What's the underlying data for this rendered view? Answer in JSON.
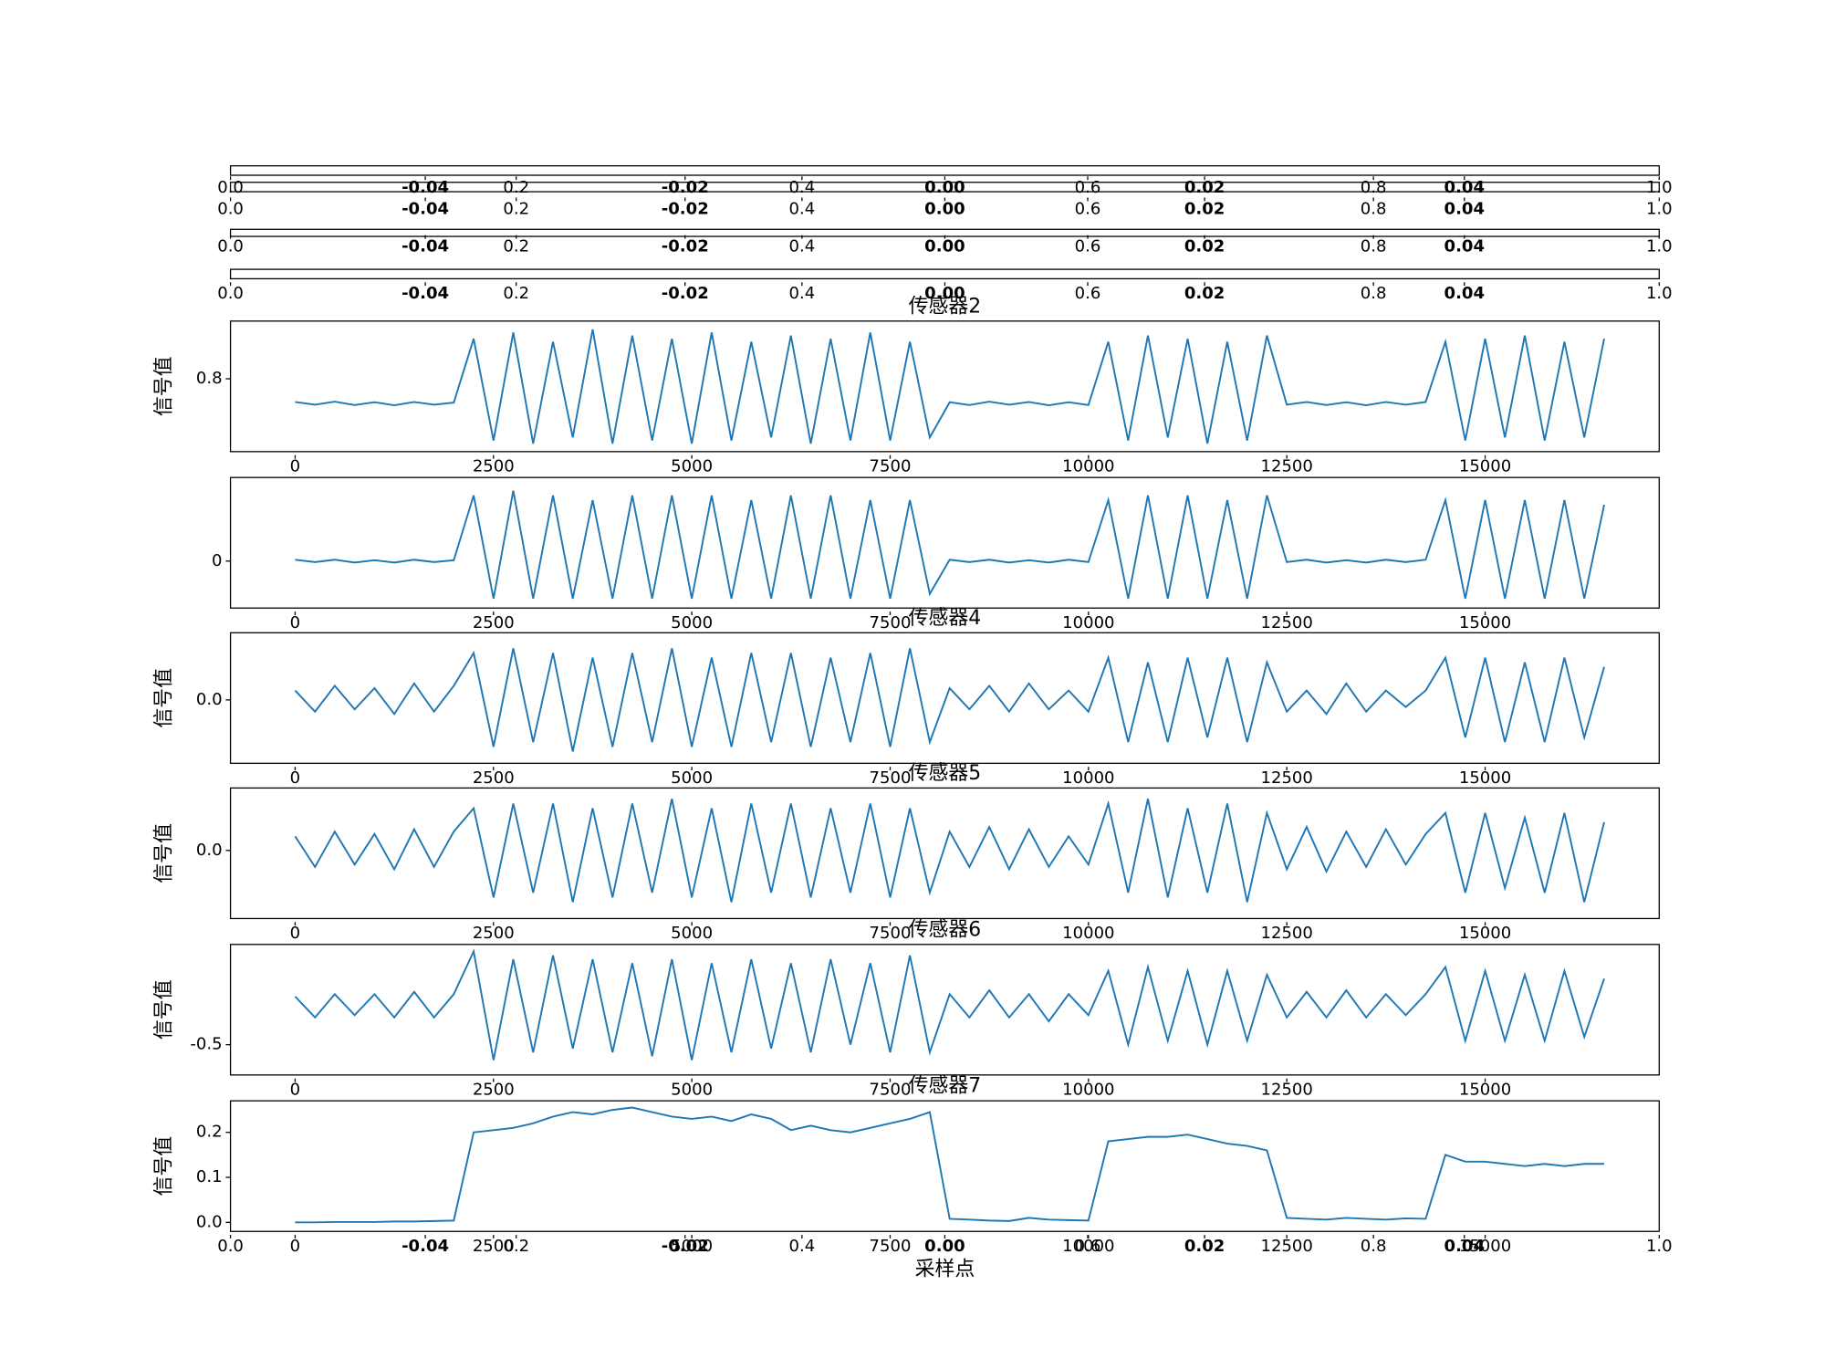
{
  "chart_data": [
    {
      "type": "empty",
      "xlim": [
        0,
        1
      ],
      "xticks": [
        {
          "value": 0,
          "label": "0.0"
        },
        0.2,
        0.4,
        0.6,
        0.8,
        {
          "value": 1,
          "label": "1.0"
        }
      ],
      "twin": {
        "xlim": [
          -0.055,
          0.055
        ],
        "xticks": [
          -0.04,
          -0.02,
          {
            "value": 0,
            "label": "0.00"
          },
          0.02,
          0.04
        ]
      }
    },
    {
      "type": "empty",
      "xlim": [
        0,
        1
      ],
      "xticks": [
        {
          "value": 0,
          "label": "0.0"
        },
        0.2,
        0.4,
        0.6,
        0.8,
        {
          "value": 1,
          "label": "1.0"
        }
      ],
      "twin": {
        "xlim": [
          -0.055,
          0.055
        ],
        "xticks": [
          -0.04,
          -0.02,
          {
            "value": 0,
            "label": "0.00"
          },
          0.02,
          0.04
        ]
      }
    },
    {
      "type": "empty",
      "xlim": [
        0,
        1
      ],
      "xticks": [
        {
          "value": 0,
          "label": "0.0"
        },
        0.2,
        0.4,
        0.6,
        0.8,
        {
          "value": 1,
          "label": "1.0"
        }
      ],
      "twin": {
        "xlim": [
          -0.055,
          0.055
        ],
        "xticks": [
          -0.04,
          -0.02,
          {
            "value": 0,
            "label": "0.00"
          },
          0.02,
          0.04
        ]
      }
    },
    {
      "type": "empty",
      "xlim": [
        0,
        1
      ],
      "xticks": [
        {
          "value": 0,
          "label": "0.0"
        },
        0.2,
        0.4,
        0.6,
        0.8,
        {
          "value": 1,
          "label": "1.0"
        }
      ],
      "twin": {
        "xlim": [
          -0.055,
          0.055
        ],
        "xticks": [
          -0.04,
          -0.02,
          {
            "value": 0,
            "label": "0.00"
          },
          0.02,
          0.04
        ]
      }
    },
    {
      "type": "line",
      "title": "传感器2",
      "ylabel": "信号值",
      "color": "#1f77b4",
      "xlim": [
        -815,
        17194
      ],
      "xticks": [
        0,
        2500,
        5000,
        7500,
        10000,
        12500,
        15000
      ],
      "ylim": [
        -1.56,
        2.67
      ],
      "yticks": [
        0.8
      ],
      "x": [
        0,
        250,
        500,
        750,
        1000,
        1250,
        1500,
        1750,
        2000,
        2250,
        2500,
        2750,
        3000,
        3250,
        3500,
        3750,
        4000,
        4250,
        4500,
        4750,
        5000,
        5250,
        5500,
        5750,
        6000,
        6250,
        6500,
        6750,
        7000,
        7250,
        7500,
        7750,
        8000,
        8250,
        8500,
        8750,
        9000,
        9250,
        9500,
        9750,
        10000,
        10250,
        10500,
        10750,
        11000,
        11250,
        11500,
        11750,
        12000,
        12250,
        12500,
        12750,
        13000,
        13250,
        13500,
        13750,
        14000,
        14250,
        14500,
        14750,
        15000,
        15250,
        15500,
        15750,
        16000,
        16250,
        16500
      ],
      "values": [
        0.05,
        -0.04,
        0.06,
        -0.05,
        0.04,
        -0.06,
        0.05,
        -0.04,
        0.03,
        2.1,
        -1.2,
        2.3,
        -1.3,
        2.0,
        -1.1,
        2.4,
        -1.3,
        2.2,
        -1.2,
        2.1,
        -1.3,
        2.3,
        -1.2,
        2.0,
        -1.1,
        2.2,
        -1.3,
        2.1,
        -1.2,
        2.3,
        -1.2,
        2.0,
        -1.1,
        0.04,
        -0.05,
        0.06,
        -0.04,
        0.05,
        -0.06,
        0.04,
        -0.05,
        2.0,
        -1.2,
        2.2,
        -1.1,
        2.1,
        -1.3,
        2.0,
        -1.2,
        2.2,
        -0.04,
        0.05,
        -0.05,
        0.04,
        -0.06,
        0.05,
        -0.04,
        0.05,
        2.0,
        -1.2,
        2.1,
        -1.1,
        2.2,
        -1.2,
        2.0,
        -1.1,
        2.1
      ]
    },
    {
      "type": "line",
      "color": "#1f77b4",
      "xlim": [
        -815,
        17194
      ],
      "xticks": [
        0,
        2500,
        5000,
        7500,
        10000,
        12500,
        15000
      ],
      "ylim": [
        -1.0,
        1.78
      ],
      "yticks": [
        0
      ],
      "x": [
        0,
        250,
        500,
        750,
        1000,
        1250,
        1500,
        1750,
        2000,
        2250,
        2500,
        2750,
        3000,
        3250,
        3500,
        3750,
        4000,
        4250,
        4500,
        4750,
        5000,
        5250,
        5500,
        5750,
        6000,
        6250,
        6500,
        6750,
        7000,
        7250,
        7500,
        7750,
        8000,
        8250,
        8500,
        8750,
        9000,
        9250,
        9500,
        9750,
        10000,
        10250,
        10500,
        10750,
        11000,
        11250,
        11500,
        11750,
        12000,
        12250,
        12500,
        12750,
        13000,
        13250,
        13500,
        13750,
        14000,
        14250,
        14500,
        14750,
        15000,
        15250,
        15500,
        15750,
        16000,
        16250,
        16500
      ],
      "values": [
        0.03,
        -0.02,
        0.03,
        -0.03,
        0.02,
        -0.03,
        0.03,
        -0.02,
        0.02,
        1.4,
        -0.8,
        1.5,
        -0.8,
        1.4,
        -0.8,
        1.3,
        -0.8,
        1.4,
        -0.8,
        1.4,
        -0.8,
        1.4,
        -0.8,
        1.3,
        -0.8,
        1.4,
        -0.8,
        1.4,
        -0.8,
        1.3,
        -0.8,
        1.3,
        -0.7,
        0.03,
        -0.02,
        0.03,
        -0.03,
        0.02,
        -0.03,
        0.03,
        -0.02,
        1.3,
        -0.8,
        1.4,
        -0.8,
        1.4,
        -0.8,
        1.3,
        -0.8,
        1.4,
        -0.02,
        0.03,
        -0.03,
        0.02,
        -0.03,
        0.03,
        -0.02,
        0.03,
        1.3,
        -0.8,
        1.3,
        -0.8,
        1.3,
        -0.8,
        1.3,
        -0.8,
        1.2
      ]
    },
    {
      "type": "line",
      "title": "传感器4",
      "ylabel": "信号值",
      "color": "#1f77b4",
      "xlim": [
        -815,
        17194
      ],
      "xticks": [
        0,
        2500,
        5000,
        7500,
        10000,
        12500,
        15000
      ],
      "ylim": [
        -1.35,
        1.43
      ],
      "yticks": [
        {
          "value": 0,
          "label": "0.0"
        }
      ],
      "x": [
        0,
        250,
        500,
        750,
        1000,
        1250,
        1500,
        1750,
        2000,
        2250,
        2500,
        2750,
        3000,
        3250,
        3500,
        3750,
        4000,
        4250,
        4500,
        4750,
        5000,
        5250,
        5500,
        5750,
        6000,
        6250,
        6500,
        6750,
        7000,
        7250,
        7500,
        7750,
        8000,
        8250,
        8500,
        8750,
        9000,
        9250,
        9500,
        9750,
        10000,
        10250,
        10500,
        10750,
        11000,
        11250,
        11500,
        11750,
        12000,
        12250,
        12500,
        12750,
        13000,
        13250,
        13500,
        13750,
        14000,
        14250,
        14500,
        14750,
        15000,
        15250,
        15500,
        15750,
        16000,
        16250,
        16500
      ],
      "values": [
        0.2,
        -0.25,
        0.3,
        -0.2,
        0.25,
        -0.3,
        0.35,
        -0.25,
        0.3,
        1.0,
        -1.0,
        1.1,
        -0.9,
        1.0,
        -1.1,
        0.9,
        -1.0,
        1.0,
        -0.9,
        1.1,
        -1.0,
        0.9,
        -1.0,
        1.0,
        -0.9,
        1.0,
        -1.0,
        0.9,
        -0.9,
        1.0,
        -1.0,
        1.1,
        -0.9,
        0.25,
        -0.2,
        0.3,
        -0.25,
        0.35,
        -0.2,
        0.2,
        -0.25,
        0.9,
        -0.9,
        0.8,
        -0.9,
        0.9,
        -0.8,
        0.9,
        -0.9,
        0.8,
        -0.25,
        0.2,
        -0.3,
        0.35,
        -0.25,
        0.2,
        -0.15,
        0.2,
        0.9,
        -0.8,
        0.9,
        -0.9,
        0.8,
        -0.9,
        0.9,
        -0.8,
        0.7
      ]
    },
    {
      "type": "line",
      "title": "传感器5",
      "ylabel": "信号值",
      "color": "#1f77b4",
      "xlim": [
        -815,
        17194
      ],
      "xticks": [
        0,
        2500,
        5000,
        7500,
        10000,
        12500,
        15000
      ],
      "ylim": [
        -1.45,
        1.33
      ],
      "yticks": [
        {
          "value": 0,
          "label": "0.0"
        }
      ],
      "x": [
        0,
        250,
        500,
        750,
        1000,
        1250,
        1500,
        1750,
        2000,
        2250,
        2500,
        2750,
        3000,
        3250,
        3500,
        3750,
        4000,
        4250,
        4500,
        4750,
        5000,
        5250,
        5500,
        5750,
        6000,
        6250,
        6500,
        6750,
        7000,
        7250,
        7500,
        7750,
        8000,
        8250,
        8500,
        8750,
        9000,
        9250,
        9500,
        9750,
        10000,
        10250,
        10500,
        10750,
        11000,
        11250,
        11500,
        11750,
        12000,
        12250,
        12500,
        12750,
        13000,
        13250,
        13500,
        13750,
        14000,
        14250,
        14500,
        14750,
        15000,
        15250,
        15500,
        15750,
        16000,
        16250,
        16500
      ],
      "values": [
        0.3,
        -0.35,
        0.4,
        -0.3,
        0.35,
        -0.4,
        0.45,
        -0.35,
        0.4,
        0.9,
        -1.0,
        1.0,
        -0.9,
        1.0,
        -1.1,
        0.9,
        -1.0,
        1.0,
        -0.9,
        1.1,
        -1.0,
        0.9,
        -1.1,
        1.0,
        -0.9,
        1.0,
        -1.0,
        0.9,
        -0.9,
        1.0,
        -1.0,
        0.9,
        -0.9,
        0.4,
        -0.35,
        0.5,
        -0.4,
        0.45,
        -0.35,
        0.3,
        -0.3,
        1.0,
        -0.9,
        1.1,
        -1.0,
        0.9,
        -0.9,
        1.0,
        -1.1,
        0.8,
        -0.4,
        0.5,
        -0.45,
        0.4,
        -0.35,
        0.45,
        -0.3,
        0.35,
        0.8,
        -0.9,
        0.8,
        -0.8,
        0.7,
        -0.9,
        0.8,
        -1.1,
        0.6
      ]
    },
    {
      "type": "line",
      "title": "传感器6",
      "ylabel": "信号值",
      "color": "#1f77b4",
      "xlim": [
        -815,
        17194
      ],
      "xticks": [
        0,
        2500,
        5000,
        7500,
        10000,
        12500,
        15000
      ],
      "ylim": [
        -0.89,
        0.79
      ],
      "yticks": [
        -0.5
      ],
      "x": [
        0,
        250,
        500,
        750,
        1000,
        1250,
        1500,
        1750,
        2000,
        2250,
        2500,
        2750,
        3000,
        3250,
        3500,
        3750,
        4000,
        4250,
        4500,
        4750,
        5000,
        5250,
        5500,
        5750,
        6000,
        6250,
        6500,
        6750,
        7000,
        7250,
        7500,
        7750,
        8000,
        8250,
        8500,
        8750,
        9000,
        9250,
        9500,
        9750,
        10000,
        10250,
        10500,
        10750,
        11000,
        11250,
        11500,
        11750,
        12000,
        12250,
        12500,
        12750,
        13000,
        13250,
        13500,
        13750,
        14000,
        14250,
        14500,
        14750,
        15000,
        15250,
        15500,
        15750,
        16000,
        16250,
        16500
      ],
      "values": [
        0.12,
        -0.15,
        0.15,
        -0.12,
        0.15,
        -0.15,
        0.18,
        -0.15,
        0.15,
        0.7,
        -0.7,
        0.6,
        -0.6,
        0.65,
        -0.55,
        0.6,
        -0.6,
        0.55,
        -0.65,
        0.6,
        -0.7,
        0.55,
        -0.6,
        0.6,
        -0.55,
        0.55,
        -0.6,
        0.6,
        -0.5,
        0.55,
        -0.6,
        0.65,
        -0.6,
        0.15,
        -0.15,
        0.2,
        -0.15,
        0.15,
        -0.2,
        0.15,
        -0.12,
        0.45,
        -0.5,
        0.5,
        -0.45,
        0.45,
        -0.5,
        0.45,
        -0.45,
        0.4,
        -0.15,
        0.18,
        -0.15,
        0.2,
        -0.15,
        0.15,
        -0.12,
        0.15,
        0.5,
        -0.45,
        0.45,
        -0.45,
        0.4,
        -0.45,
        0.45,
        -0.4,
        0.35
      ]
    },
    {
      "type": "line",
      "title": "传感器7",
      "ylabel": "信号值",
      "xlabel": "采样点",
      "color": "#1f77b4",
      "xlim": [
        -815,
        17194
      ],
      "xticks": [
        0,
        2500,
        5000,
        7500,
        10000,
        12500,
        15000
      ],
      "ylim": [
        -0.02,
        0.27
      ],
      "yticks": [
        {
          "value": 0,
          "label": "0.0"
        },
        0.1,
        0.2
      ],
      "x": [
        0,
        250,
        500,
        750,
        1000,
        1250,
        1500,
        1750,
        2000,
        2250,
        2500,
        2750,
        3000,
        3250,
        3500,
        3750,
        4000,
        4250,
        4500,
        4750,
        5000,
        5250,
        5500,
        5750,
        6000,
        6250,
        6500,
        6750,
        7000,
        7250,
        7500,
        7750,
        8000,
        8250,
        8500,
        8750,
        9000,
        9250,
        9500,
        9750,
        10000,
        10250,
        10500,
        10750,
        11000,
        11250,
        11500,
        11750,
        12000,
        12250,
        12500,
        12750,
        13000,
        13250,
        13500,
        13750,
        14000,
        14250,
        14500,
        14750,
        15000,
        15250,
        15500,
        15750,
        16000,
        16250,
        16500
      ],
      "values": [
        0.0,
        0.0,
        0.001,
        0.001,
        0.001,
        0.002,
        0.002,
        0.003,
        0.004,
        0.2,
        0.205,
        0.21,
        0.22,
        0.235,
        0.245,
        0.24,
        0.25,
        0.255,
        0.245,
        0.235,
        0.23,
        0.235,
        0.225,
        0.24,
        0.23,
        0.205,
        0.215,
        0.205,
        0.2,
        0.21,
        0.22,
        0.23,
        0.245,
        0.008,
        0.006,
        0.004,
        0.003,
        0.01,
        0.006,
        0.005,
        0.004,
        0.18,
        0.185,
        0.19,
        0.19,
        0.195,
        0.185,
        0.175,
        0.17,
        0.16,
        0.01,
        0.008,
        0.006,
        0.01,
        0.008,
        0.006,
        0.009,
        0.008,
        0.15,
        0.135,
        0.135,
        0.13,
        0.125,
        0.13,
        0.125,
        0.13,
        0.13
      ]
    },
    {
      "type": "empty",
      "xlim": [
        0,
        1
      ],
      "xticks": [
        {
          "value": 0,
          "label": "0.0"
        },
        0.2,
        0.4,
        0.6,
        0.8,
        {
          "value": 1,
          "label": "1.0"
        }
      ],
      "twin": {
        "xlim": [
          -0.055,
          0.055
        ],
        "xticks": [
          -0.04,
          -0.02,
          {
            "value": 0,
            "label": "0.00"
          },
          0.02,
          0.04
        ]
      }
    }
  ]
}
